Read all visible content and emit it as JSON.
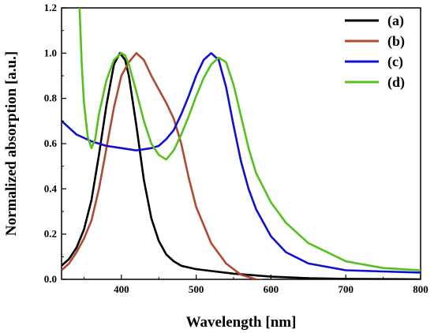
{
  "chart_data": {
    "type": "line",
    "xlabel": "Wavelength [nm]",
    "ylabel": "Normalized absorption [a.u.]",
    "xlim": [
      320,
      800
    ],
    "ylim": [
      0,
      1.2
    ],
    "xticks": [
      400,
      500,
      600,
      700,
      800
    ],
    "yticks": [
      0.0,
      0.2,
      0.4,
      0.6,
      0.8,
      1.0,
      1.2
    ],
    "ytick_labels": [
      "0.0",
      "0.2",
      "0.4",
      "0.6",
      "0.8",
      "1.0",
      "1.2"
    ],
    "legend_position": "top-right",
    "grid": false,
    "series": [
      {
        "name": "(a)",
        "color": "#000000",
        "points": [
          [
            320,
            0.06
          ],
          [
            330,
            0.09
          ],
          [
            340,
            0.14
          ],
          [
            350,
            0.22
          ],
          [
            360,
            0.35
          ],
          [
            370,
            0.55
          ],
          [
            380,
            0.77
          ],
          [
            390,
            0.95
          ],
          [
            398,
            1.0
          ],
          [
            405,
            0.97
          ],
          [
            410,
            0.9
          ],
          [
            420,
            0.68
          ],
          [
            430,
            0.44
          ],
          [
            440,
            0.27
          ],
          [
            450,
            0.17
          ],
          [
            460,
            0.11
          ],
          [
            470,
            0.08
          ],
          [
            480,
            0.06
          ],
          [
            500,
            0.045
          ],
          [
            550,
            0.025
          ],
          [
            600,
            0.012
          ],
          [
            650,
            0.005
          ],
          [
            700,
            0.002
          ],
          [
            800,
            0.0
          ]
        ]
      },
      {
        "name": "(b)",
        "color": "#b04a2e",
        "points": [
          [
            320,
            0.04
          ],
          [
            330,
            0.07
          ],
          [
            340,
            0.12
          ],
          [
            350,
            0.18
          ],
          [
            360,
            0.26
          ],
          [
            370,
            0.4
          ],
          [
            380,
            0.58
          ],
          [
            390,
            0.76
          ],
          [
            400,
            0.9
          ],
          [
            410,
            0.96
          ],
          [
            420,
            1.0
          ],
          [
            430,
            0.97
          ],
          [
            440,
            0.9
          ],
          [
            450,
            0.84
          ],
          [
            460,
            0.78
          ],
          [
            470,
            0.71
          ],
          [
            480,
            0.6
          ],
          [
            490,
            0.45
          ],
          [
            500,
            0.32
          ],
          [
            520,
            0.16
          ],
          [
            540,
            0.07
          ],
          [
            560,
            0.02
          ],
          [
            580,
            0.0
          ],
          [
            600,
            -0.01
          ],
          [
            620,
            -0.01
          ]
        ]
      },
      {
        "name": "(c)",
        "color": "#1010d0",
        "points": [
          [
            320,
            0.7
          ],
          [
            340,
            0.64
          ],
          [
            360,
            0.61
          ],
          [
            380,
            0.59
          ],
          [
            400,
            0.58
          ],
          [
            420,
            0.57
          ],
          [
            440,
            0.58
          ],
          [
            450,
            0.59
          ],
          [
            460,
            0.62
          ],
          [
            470,
            0.66
          ],
          [
            480,
            0.73
          ],
          [
            490,
            0.81
          ],
          [
            500,
            0.9
          ],
          [
            510,
            0.97
          ],
          [
            520,
            1.0
          ],
          [
            530,
            0.97
          ],
          [
            540,
            0.85
          ],
          [
            550,
            0.68
          ],
          [
            560,
            0.52
          ],
          [
            570,
            0.4
          ],
          [
            580,
            0.31
          ],
          [
            600,
            0.19
          ],
          [
            620,
            0.12
          ],
          [
            650,
            0.07
          ],
          [
            700,
            0.04
          ],
          [
            750,
            0.035
          ],
          [
            800,
            0.03
          ]
        ]
      },
      {
        "name": "(d)",
        "color": "#55c020",
        "points": [
          [
            344,
            1.2
          ],
          [
            347,
            0.95
          ],
          [
            350,
            0.78
          ],
          [
            355,
            0.63
          ],
          [
            360,
            0.58
          ],
          [
            365,
            0.62
          ],
          [
            370,
            0.73
          ],
          [
            380,
            0.88
          ],
          [
            390,
            0.97
          ],
          [
            400,
            1.0
          ],
          [
            405,
            0.99
          ],
          [
            410,
            0.95
          ],
          [
            420,
            0.83
          ],
          [
            430,
            0.7
          ],
          [
            440,
            0.6
          ],
          [
            450,
            0.55
          ],
          [
            460,
            0.53
          ],
          [
            470,
            0.57
          ],
          [
            480,
            0.64
          ],
          [
            490,
            0.72
          ],
          [
            500,
            0.81
          ],
          [
            510,
            0.89
          ],
          [
            520,
            0.95
          ],
          [
            530,
            0.98
          ],
          [
            540,
            0.96
          ],
          [
            550,
            0.86
          ],
          [
            560,
            0.72
          ],
          [
            570,
            0.58
          ],
          [
            580,
            0.47
          ],
          [
            600,
            0.34
          ],
          [
            620,
            0.25
          ],
          [
            650,
            0.16
          ],
          [
            700,
            0.08
          ],
          [
            750,
            0.05
          ],
          [
            800,
            0.04
          ]
        ]
      }
    ]
  }
}
